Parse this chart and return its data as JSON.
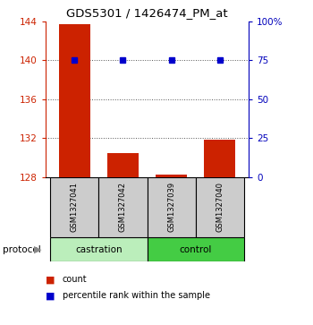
{
  "title": "GDS5301 / 1426474_PM_at",
  "samples": [
    "GSM1327041",
    "GSM1327042",
    "GSM1327039",
    "GSM1327040"
  ],
  "count_values": [
    143.7,
    130.5,
    128.3,
    131.8
  ],
  "percentile_values": [
    75,
    75,
    75,
    75
  ],
  "ylim_left": [
    128,
    144
  ],
  "ylim_right": [
    0,
    100
  ],
  "yticks_left": [
    128,
    132,
    136,
    140,
    144
  ],
  "yticks_right": [
    0,
    25,
    50,
    75,
    100
  ],
  "ytick_labels_right": [
    "0",
    "25",
    "50",
    "75",
    "100%"
  ],
  "bar_color": "#cc2200",
  "dot_color": "#0000cc",
  "grid_color": "#555555",
  "castration_color": "#bbeebb",
  "control_color": "#44cc44",
  "sample_box_color": "#cccccc",
  "background_color": "#ffffff",
  "left_axis_color": "#cc2200",
  "right_axis_color": "#0000bb"
}
